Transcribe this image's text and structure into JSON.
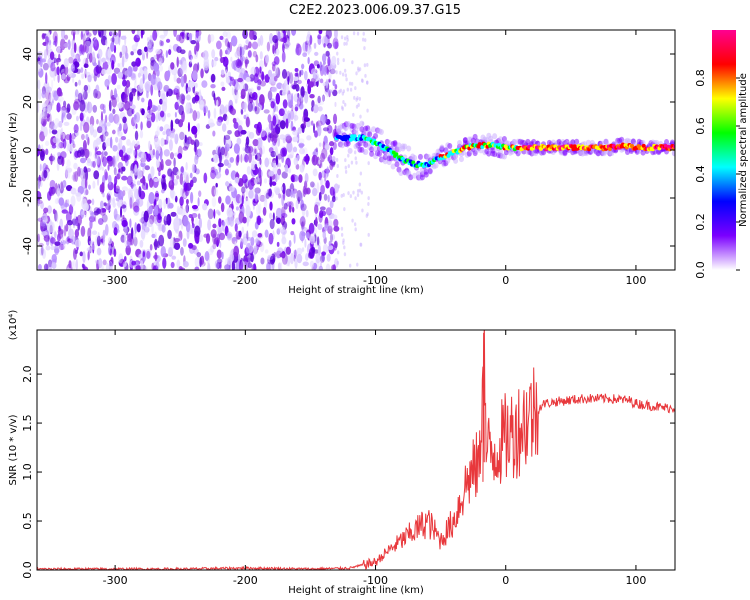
{
  "title": "C2E2.2023.006.09.37.G15",
  "chart_data": [
    {
      "type": "heatmap",
      "xlabel": "Height of straight line (km)",
      "ylabel": "Frequency (Hz)",
      "xlim": [
        -360,
        130
      ],
      "ylim": [
        -50,
        50
      ],
      "xticks": [
        -300,
        -200,
        -100,
        0,
        100
      ],
      "yticks": [
        -40,
        -20,
        0,
        20,
        40
      ],
      "colorbar": {
        "label": "Normalized spectral amplitude",
        "range": [
          0,
          1
        ],
        "ticks": [
          "0.0",
          "0.2",
          "0.4",
          "0.6",
          "0.8"
        ],
        "colors": [
          "#ffffff",
          "#7b00ff",
          "#0000ff",
          "#00ffff",
          "#00ff00",
          "#ffff00",
          "#ff0000",
          "#ff0090"
        ]
      },
      "signal_trace": {
        "x": [
          -130,
          -110,
          -100,
          -90,
          -80,
          -70,
          -60,
          -50,
          -40,
          -30,
          -20,
          -10,
          0,
          20,
          40,
          60,
          80,
          90,
          100,
          130
        ],
        "y": [
          5,
          5,
          3,
          0,
          -4,
          -6,
          -6,
          -3,
          -1,
          1,
          2,
          2,
          1,
          1,
          1,
          1,
          1,
          2,
          1,
          1
        ]
      },
      "noise_region_x": [
        -360,
        -130
      ]
    },
    {
      "type": "line",
      "xlabel": "Height of straight line (km)",
      "ylabel": "SNR (10 * v/v)",
      "scale_label": "(x10⁴)",
      "xlim": [
        -360,
        130
      ],
      "ylim": [
        0,
        2.45
      ],
      "xticks": [
        -300,
        -200,
        -100,
        0,
        100
      ],
      "yticks": [
        "0.0",
        "0.5",
        "1.0",
        "1.5",
        "2.0"
      ],
      "color": "#e8383c",
      "series": [
        {
          "x": [
            -360,
            -300,
            -250,
            -200,
            -150,
            -120,
            -100,
            -90,
            -80,
            -70,
            -60,
            -50,
            -40,
            -30,
            -20,
            -17,
            -15,
            -10,
            0,
            10,
            20,
            30,
            40,
            60,
            80,
            95,
            100,
            110,
            120,
            130
          ],
          "y": [
            0.01,
            0.01,
            0.01,
            0.02,
            0.01,
            0.02,
            0.08,
            0.2,
            0.3,
            0.4,
            0.5,
            0.3,
            0.5,
            0.9,
            1.1,
            2.4,
            1.2,
            1.2,
            1.35,
            1.45,
            1.6,
            1.7,
            1.72,
            1.75,
            1.75,
            1.73,
            1.7,
            1.68,
            1.66,
            1.65
          ]
        }
      ]
    }
  ]
}
